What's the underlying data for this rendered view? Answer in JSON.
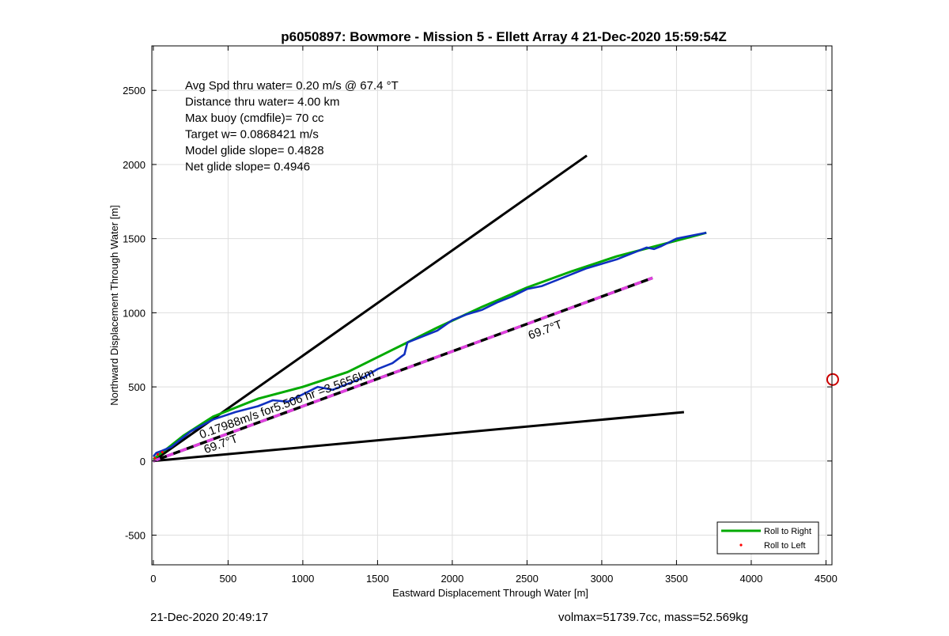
{
  "chart_data": {
    "type": "line",
    "title": "p6050897: Bowmore - Mission 5 - Ellett Array 4 21-Dec-2020 15:59:54Z",
    "xlabel": "Eastward Displacement Through Water [m]",
    "ylabel": "Northward Displacement Through Water [m]",
    "xlim": [
      -10,
      4540
    ],
    "ylim": [
      -700,
      2800
    ],
    "xticks": [
      0,
      500,
      1000,
      1500,
      2000,
      2500,
      3000,
      3500,
      4000,
      4500
    ],
    "yticks": [
      -500,
      0,
      500,
      1000,
      1500,
      2000,
      2500
    ],
    "grid": true,
    "legend": {
      "placement": "bottom-right",
      "entries": [
        "Roll to Right",
        "Roll to Left"
      ]
    },
    "info_lines": [
      "Avg Spd thru water=  0.20 m/s @  67.4 °T",
      "Distance thru water=  4.00 km",
      "Max buoy (cmdfile)= 70 cc",
      "Target w= 0.0868421 m/s",
      "Model glide slope= 0.4828",
      "Net glide slope= 0.4946"
    ],
    "annotations": [
      {
        "text": "0.17988m/s for5.506 hr =3.5656km",
        "x": 320,
        "y": 150,
        "rotate": -20
      },
      {
        "text": "69.7°T",
        "x": 2520,
        "y": 820,
        "rotate": -20
      },
      {
        "text": "69.7°T",
        "x": 350,
        "y": 50,
        "rotate": -20
      }
    ],
    "black_lines": [
      {
        "x": [
          0,
          2900
        ],
        "y": [
          0,
          2060
        ]
      },
      {
        "x": [
          0,
          3550
        ],
        "y": [
          0,
          330
        ]
      }
    ],
    "dashed_line": {
      "x": [
        0,
        3340
      ],
      "y": [
        0,
        1235
      ],
      "colors": [
        "#000000",
        "#e040e0"
      ]
    },
    "series": [
      {
        "name": "Roll to Right",
        "color": "#00aa00",
        "x": [
          0,
          40,
          100,
          200,
          400,
          700,
          1000,
          1300,
          1600,
          1900,
          2200,
          2500,
          2800,
          3100,
          3400,
          3700
        ],
        "y": [
          10,
          45,
          90,
          170,
          300,
          420,
          500,
          600,
          750,
          900,
          1040,
          1170,
          1280,
          1380,
          1460,
          1540
        ]
      },
      {
        "color": "#1030c0",
        "x": [
          0,
          20,
          60,
          120,
          250,
          400,
          550,
          700,
          800,
          900,
          1000,
          1100,
          1200,
          1300,
          1400,
          1500,
          1600,
          1680,
          1700,
          1800,
          1900,
          2000,
          2100,
          2200,
          2300,
          2400,
          2500,
          2600,
          2700,
          2800,
          2900,
          3000,
          3100,
          3200,
          3300,
          3350,
          3400,
          3500,
          3600,
          3700
        ],
        "y": [
          30,
          55,
          70,
          95,
          200,
          280,
          330,
          370,
          410,
          400,
          450,
          500,
          480,
          520,
          560,
          620,
          660,
          720,
          800,
          840,
          880,
          950,
          990,
          1020,
          1070,
          1110,
          1160,
          1180,
          1220,
          1260,
          1300,
          1330,
          1360,
          1400,
          1440,
          1430,
          1450,
          1500,
          1520,
          1540
        ]
      }
    ],
    "roll_left_points": [
      {
        "x": 10,
        "y": 20
      },
      {
        "x": 30,
        "y": 45
      },
      {
        "x": 60,
        "y": 60
      }
    ],
    "external_marker": {
      "x": 4545,
      "y": 550,
      "color": "#cc0000"
    }
  },
  "footer": {
    "timestamp": "21-Dec-2020 20:49:17",
    "volmax": "volmax=51739.7cc, mass=52.569kg"
  },
  "colors": {
    "axis": "#000000",
    "grid": "#dedede"
  }
}
